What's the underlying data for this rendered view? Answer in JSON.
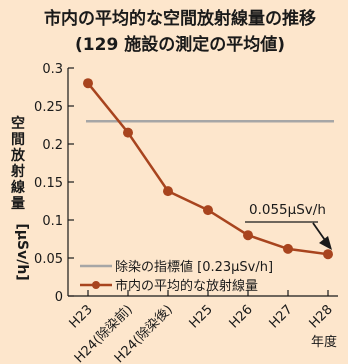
{
  "chart_data": {
    "type": "line",
    "title_line1": "市内の平均的な空間放射線量の推移",
    "title_line2": "(129 施設の測定の平均値)",
    "ylabel_text": "空間放射線量",
    "ylabel_unit": "[μSv/h]",
    "xunit": "年度",
    "categories": [
      "H23",
      "H24(除染前)",
      "H24(除染後)",
      "H25",
      "H26",
      "H27",
      "H28"
    ],
    "ylim": [
      0,
      0.3
    ],
    "yticks": [
      "0",
      "0.05",
      "0.1",
      "0.15",
      "0.2",
      "0.25",
      "0.3"
    ],
    "series": [
      {
        "name": "市内の平均的な放射線量",
        "values": [
          0.28,
          0.215,
          0.138,
          0.113,
          0.08,
          0.062,
          0.055
        ],
        "color": "#a8441e"
      }
    ],
    "reference_line": {
      "name": "除染の指標値 [0.23μSv/h]",
      "value": 0.23,
      "color": "#a6a6a6"
    },
    "annotation": "0.055μSv/h",
    "grid": false,
    "legend_position": "bottom-left"
  }
}
